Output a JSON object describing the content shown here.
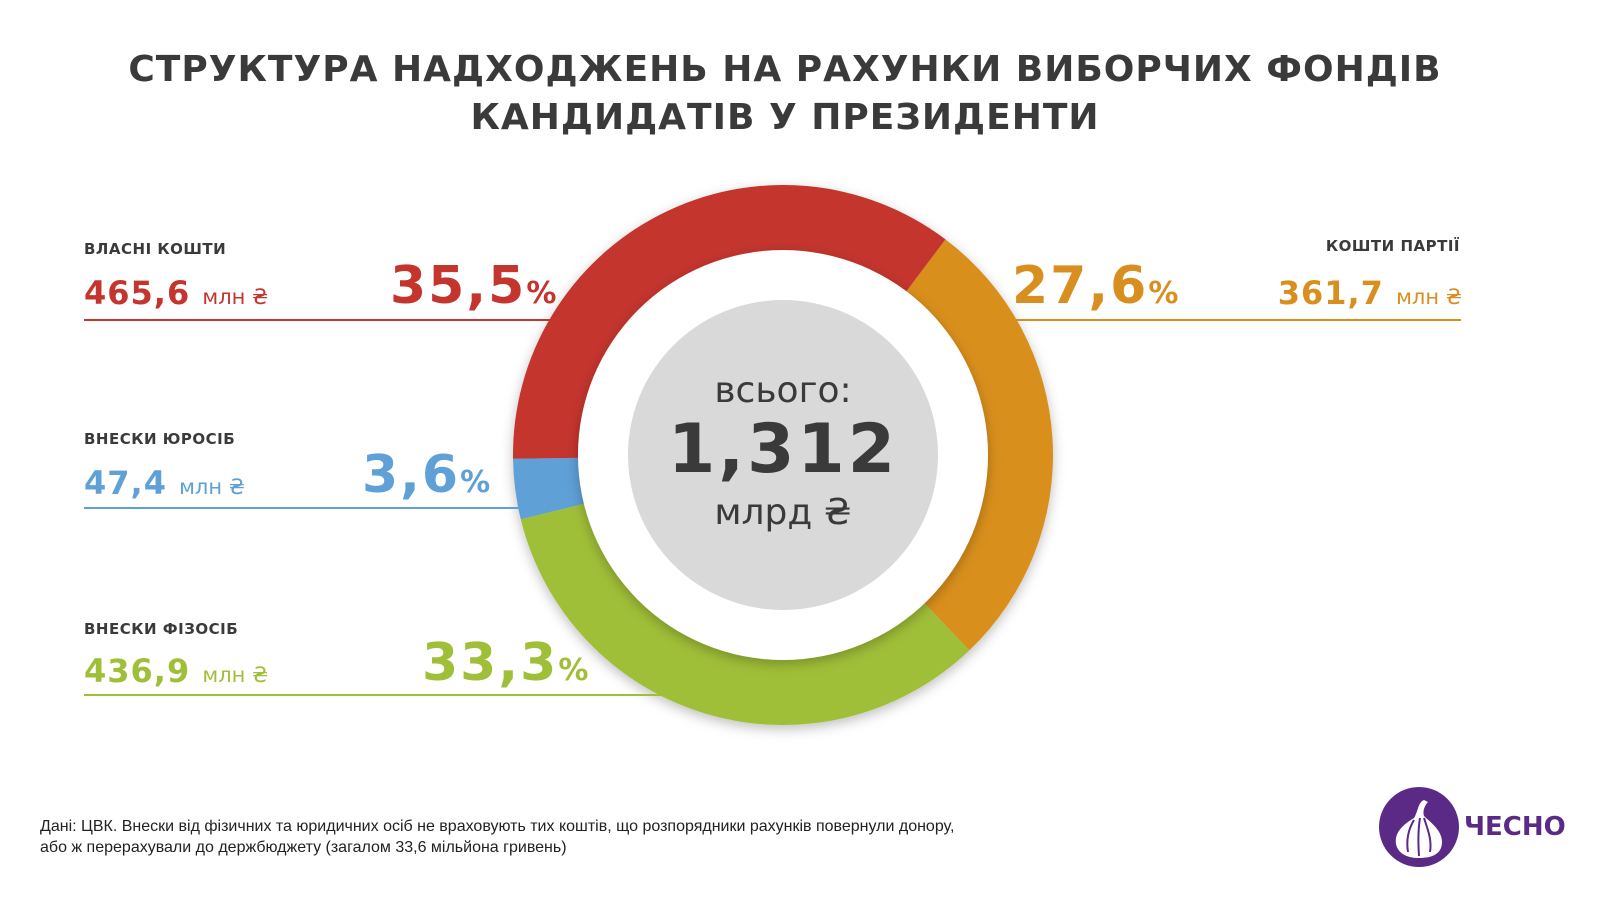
{
  "title_lines": [
    "СТРУКТУРА НАДХОДЖЕНЬ НА РАХУНКИ ВИБОРЧИХ ФОНДІВ",
    "КАНДИДАТІВ У ПРЕЗИДЕНТИ"
  ],
  "chart_data": {
    "type": "pie",
    "variant": "donut",
    "title": "СТРУКТУРА НАДХОДЖЕНЬ НА РАХУНКИ ВИБОРЧИХ ФОНДІВ КАНДИДАТІВ У ПРЕЗИДЕНТИ",
    "start_angle_deg": 37,
    "slices": [
      {
        "label": "КОШТИ ПАРТІЇ",
        "amount": "361,7",
        "unit": "млн ₴",
        "percent": 27.6,
        "percent_text": "27,6",
        "color": "#d98f1f"
      },
      {
        "label": "ВНЕСКИ ФІЗОСІБ",
        "amount": "436,9",
        "unit": "млн ₴",
        "percent": 33.3,
        "percent_text": "33,3",
        "color": "#a0bf38"
      },
      {
        "label": "ВНЕСКИ ЮРОСІБ",
        "amount": "47,4",
        "unit": "млн ₴",
        "percent": 3.6,
        "percent_text": "3,6",
        "color": "#5fa0d6"
      },
      {
        "label": "ВЛАСНІ КОШТИ",
        "amount": "465,6",
        "unit": "млн ₴",
        "percent": 35.5,
        "percent_text": "35,5",
        "color": "#c4352e"
      }
    ],
    "center": {
      "caption": "всього:",
      "value": "1,312",
      "unit": "млрд ₴"
    }
  },
  "percent_sign": "%",
  "footnote_lines": [
    "Дані: ЦВК. Внески від фізичних та юридичних осіб не враховують тих коштів, що розпорядники рахунків повернули донору,",
    "або ж перерахували до держбюджету (загалом 33,6 мільйона гривень)"
  ],
  "logo": {
    "text": "ЧЕСНО",
    "color": "#5b2a86"
  }
}
